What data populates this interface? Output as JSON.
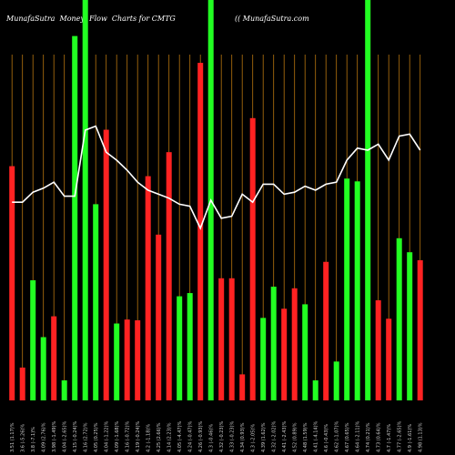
{
  "header": {
    "left": "MunafaSutra  Money  Flow  Charts for CMTG",
    "right": "(( MunafaSutra.com"
  },
  "chart_data": {
    "type": "bar",
    "title": "MunafaSutra  Money  Flow  Charts for CMTG",
    "subtitle": "(( MunafaSutra.com",
    "ylim": [
      0,
      1
    ],
    "line_ylim": [
      0,
      1
    ],
    "grid": "vertical",
    "colors": {
      "up": "#22ff22",
      "down": "#ff2222",
      "line": "#ffffff",
      "grid": "#b8740f",
      "background": "#000000"
    },
    "categories": [
      "Fri 17 Jan",
      "Tue 14 Jan",
      "Mon 13 Jan",
      "Fri 10 Jan",
      "Wed 08 Jan",
      "Tue 07 Jan",
      "Mon 06 Jan",
      "Fri 03 Jan",
      "Thu 02 Jan",
      "Tue 31 Dec",
      "Mon 30 Dec",
      "Fri 27 Dec",
      "Thu 26 Dec",
      "Tue 24 Dec",
      "Mon 23 Dec",
      "Fri 20 Dec",
      "Thu 19 Dec",
      "Wed 18 Dec",
      "Tue 17 Dec",
      "Mon 16 Dec",
      "Fri 13 Dec",
      "Thu 12 Dec",
      "Wed 11 Dec",
      "Tue 10 Dec",
      "Mon 09 Dec",
      "Fri 06 Dec",
      "Thu 05 Dec",
      "Wed 04 Dec",
      "Tue 03 Dec",
      "Mon 02 Dec",
      "Fri 29 Nov",
      "Wed 27 Nov",
      "Tue 26 Nov",
      "Mon 25 Nov",
      "Fri 22 Nov",
      "Thu 21 Nov",
      "Wed 20 Nov",
      "Tue 19 Nov",
      "Mon 18 Nov",
      "Fri 15 Nov"
    ],
    "tick_labels": [
      "3.51 (1.17)%",
      "3.6 (-5.26)%",
      "3.8 (-7.1)%",
      "4.09 (2.76)%",
      "3.98 (-1.49)%",
      "4.04 (-2.65)%",
      "4.15 (-0.24)%",
      "4.16 (2.72)%",
      "4.05 (0.25)%",
      "4.04 (-1.22)%",
      "4.09 (-1.68)%",
      "4.16 (-0.72)%",
      "4.19 (-0.24)%",
      "4.2 (-1.18)%",
      "4.25 (2.66)%",
      "4.14 (2.23)%",
      "4.05 (-4.47)%",
      "4.24 (-0.47)%",
      "4.26 (-0.93)%",
      "4.3 (-0.46)%",
      "4.32 (-0.23)%",
      "4.33 (-0.23)%",
      "4.34 (0.93)%",
      "4.3 (-2.05)%",
      "4.39 (1.62)%",
      "4.32 (-2.02)%",
      "4.41 (-2.43)%",
      "4.52 (0.89)%",
      "4.48 (1.59)%",
      "4.41 (-4.14)%",
      "4.6 (-0.43)%",
      "4.62 (-1.07)%",
      "4.67 (0.65)%",
      "4.64 (-2.11)%",
      "4.74 (0.21)%",
      "4.73 (0.64)%",
      "4.7 (-1.47)%",
      "4.77 (-2.65)%",
      "4.9 (-1.61)%",
      "4.98 (1.13)%"
    ],
    "directions": [
      "down",
      "down",
      "up",
      "up",
      "down",
      "up",
      "up",
      "up",
      "up",
      "down",
      "up",
      "down",
      "down",
      "down",
      "down",
      "down",
      "up",
      "up",
      "down",
      "up",
      "down",
      "down",
      "down",
      "down",
      "up",
      "up",
      "down",
      "down",
      "up",
      "up",
      "down",
      "up",
      "up",
      "up",
      "up",
      "down",
      "down",
      "up",
      "up",
      "down"
    ],
    "values": [
      0.585,
      0.082,
      0.3,
      0.158,
      0.21,
      0.05,
      0.91,
      1.0,
      0.49,
      0.676,
      0.192,
      0.202,
      0.2,
      0.56,
      0.414,
      0.62,
      0.26,
      0.268,
      0.843,
      1.0,
      0.305,
      0.305,
      0.065,
      0.705,
      0.206,
      0.284,
      0.229,
      0.28,
      0.24,
      0.05,
      0.346,
      0.097,
      0.554,
      0.547,
      1.0,
      0.25,
      0.204,
      0.405,
      0.37,
      0.35
    ],
    "line": [
      0.495,
      0.495,
      0.52,
      0.53,
      0.545,
      0.51,
      0.51,
      0.675,
      0.685,
      0.62,
      0.6,
      0.575,
      0.545,
      0.525,
      0.515,
      0.505,
      0.49,
      0.485,
      0.43,
      0.5,
      0.455,
      0.46,
      0.515,
      0.495,
      0.54,
      0.54,
      0.515,
      0.52,
      0.535,
      0.525,
      0.54,
      0.545,
      0.6,
      0.63,
      0.625,
      0.64,
      0.6,
      0.66,
      0.665,
      0.625
    ]
  }
}
